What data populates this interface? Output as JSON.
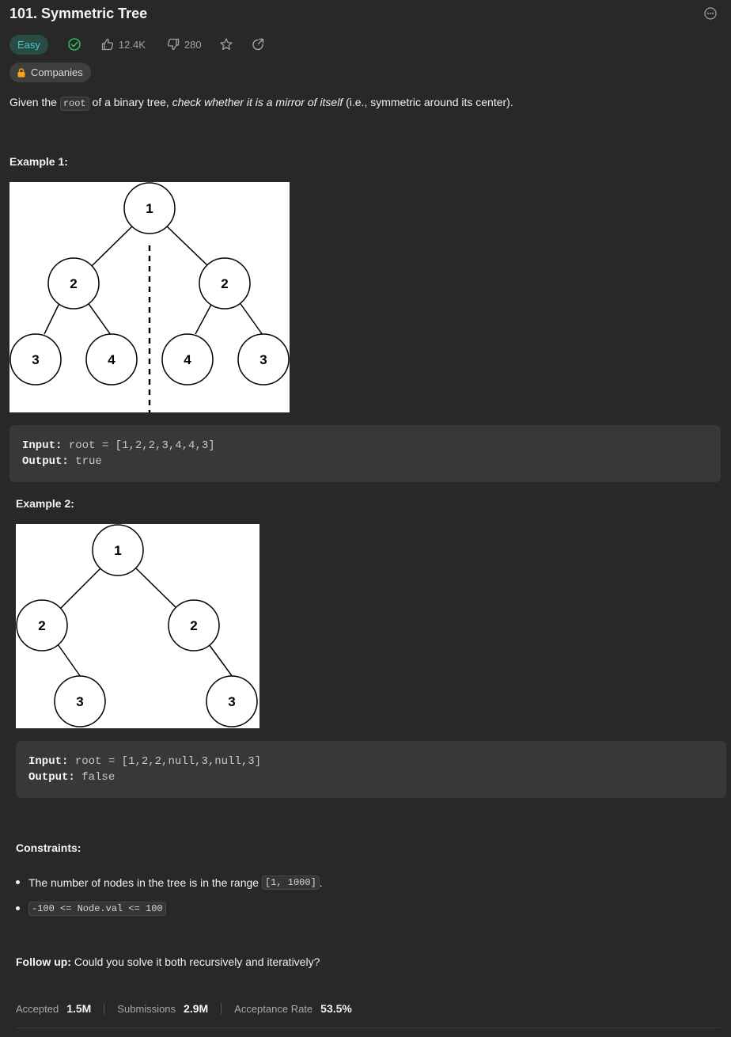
{
  "problem": {
    "title": "101. Symmetric Tree",
    "difficulty": "Easy",
    "likes": "12.4K",
    "dislikes": "280",
    "companies_label": "Companies"
  },
  "description": {
    "prefix": "Given the ",
    "code": "root",
    "middle": " of a binary tree, ",
    "emphasis": "check whether it is a mirror of itself",
    "suffix": " (i.e., symmetric around its center)."
  },
  "examples": [
    {
      "title": "Example 1:",
      "input_label": "Input:",
      "input_value": "root = [1,2,2,3,4,4,3]",
      "output_label": "Output:",
      "output_value": "true",
      "nodes": [
        "1",
        "2",
        "2",
        "3",
        "4",
        "4",
        "3"
      ]
    },
    {
      "title": "Example 2:",
      "input_label": "Input:",
      "input_value": "root = [1,2,2,null,3,null,3]",
      "output_label": "Output:",
      "output_value": "false",
      "nodes": [
        "1",
        "2",
        "2",
        "3",
        "3"
      ]
    }
  ],
  "constraints": {
    "title": "Constraints:",
    "items": [
      {
        "text": "The number of nodes in the tree is in the range ",
        "code": "[1, 1000]",
        "after": "."
      },
      {
        "text": "",
        "code": "-100 <= Node.val <= 100",
        "after": ""
      }
    ]
  },
  "followup": {
    "label": "Follow up:",
    "text": " Could you solve it both recursively and iteratively?"
  },
  "stats": {
    "accepted_label": "Accepted",
    "accepted_value": "1.5M",
    "submissions_label": "Submissions",
    "submissions_value": "2.9M",
    "rate_label": "Acceptance Rate",
    "rate_value": "53.5%"
  },
  "colors": {
    "background": "#282828",
    "easy": "#46c6c2",
    "solved": "#2cbb5d",
    "code_box": "#383838"
  },
  "icons": [
    "more-icon",
    "solved-check-icon",
    "thumbs-up-icon",
    "thumbs-down-icon",
    "star-icon",
    "share-icon",
    "lock-icon"
  ]
}
